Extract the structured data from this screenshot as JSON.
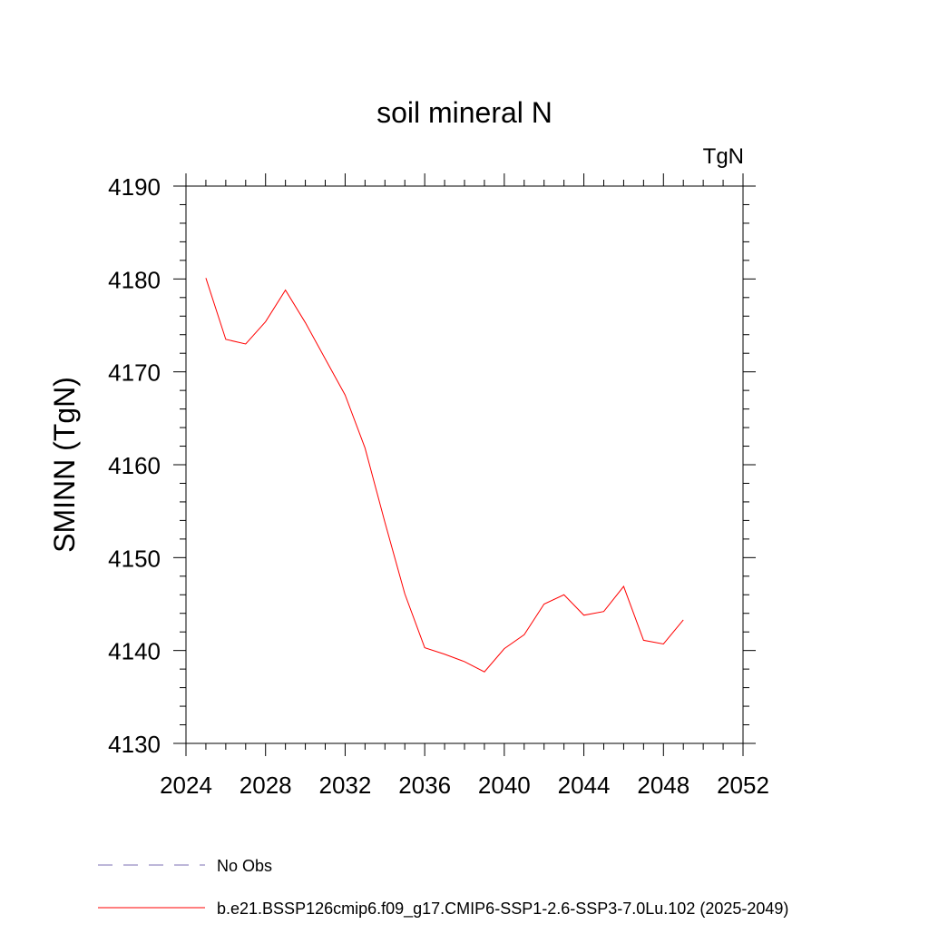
{
  "chart_data": {
    "type": "line",
    "title": "soil mineral N",
    "units_label": "TgN",
    "ylabel": "SMINN  (TgN)",
    "xlabel": "",
    "xlim": [
      2024,
      2052
    ],
    "ylim": [
      4130,
      4190
    ],
    "x_ticks": [
      2024,
      2028,
      2032,
      2036,
      2040,
      2044,
      2048,
      2052
    ],
    "y_ticks": [
      4130,
      4140,
      4150,
      4160,
      4170,
      4180,
      4190
    ],
    "x_minor_step": 1,
    "y_minor_step": 2,
    "grid": false,
    "series": [
      {
        "name": "b.e21.BSSP126cmip6.f09_g17.CMIP6-SSP1-2.6-SSP3-7.0Lu.102 (2025-2049)",
        "color": "#ff0000",
        "dash": "solid",
        "x": [
          2025,
          2026,
          2027,
          2028,
          2029,
          2030,
          2031,
          2032,
          2033,
          2034,
          2035,
          2036,
          2037,
          2038,
          2039,
          2040,
          2041,
          2042,
          2043,
          2044,
          2045,
          2046,
          2047,
          2048,
          2049
        ],
        "y": [
          4180.1,
          4173.5,
          4173.0,
          4175.4,
          4178.8,
          4175.3,
          4171.4,
          4167.5,
          4161.8,
          4153.8,
          4146.1,
          4140.3,
          4139.6,
          4138.8,
          4137.7,
          4140.2,
          4141.7,
          4145.0,
          4146.0,
          4143.8,
          4144.2,
          4146.9,
          4141.1,
          4140.7,
          4143.3
        ]
      }
    ],
    "legend": {
      "placement": "bottom-left",
      "entries": [
        {
          "label": "No Obs",
          "color": "#7b6fb3",
          "dash": "dashed"
        },
        {
          "label": "b.e21.BSSP126cmip6.f09_g17.CMIP6-SSP1-2.6-SSP3-7.0Lu.102 (2025-2049)",
          "color": "#ff0000",
          "dash": "solid"
        }
      ]
    }
  }
}
